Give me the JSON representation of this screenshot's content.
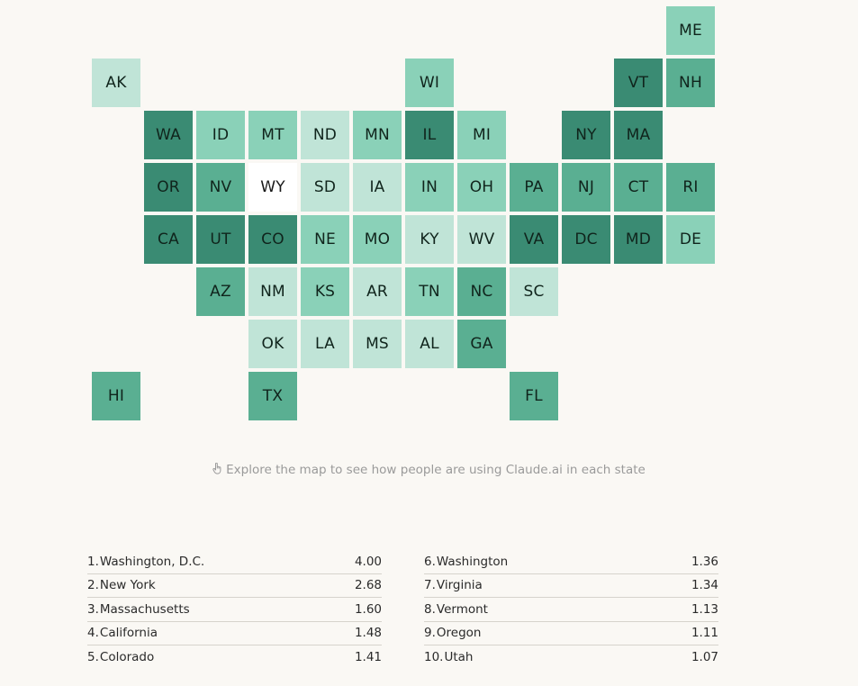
{
  "palette": {
    "level1": "#c0e4d7",
    "level2": "#8ad1b8",
    "level3": "#5aaf92",
    "level4": "#3a8b73",
    "none": "#ffffff"
  },
  "states": [
    {
      "abbr": "ME",
      "level": 2,
      "col": 11,
      "row": 0
    },
    {
      "abbr": "AK",
      "level": 1,
      "col": 0,
      "row": 1
    },
    {
      "abbr": "WI",
      "level": 2,
      "col": 6,
      "row": 1
    },
    {
      "abbr": "VT",
      "level": 4,
      "col": 10,
      "row": 1
    },
    {
      "abbr": "NH",
      "level": 3,
      "col": 11,
      "row": 1
    },
    {
      "abbr": "WA",
      "level": 4,
      "col": 1,
      "row": 2
    },
    {
      "abbr": "ID",
      "level": 2,
      "col": 2,
      "row": 2
    },
    {
      "abbr": "MT",
      "level": 2,
      "col": 3,
      "row": 2
    },
    {
      "abbr": "ND",
      "level": 1,
      "col": 4,
      "row": 2
    },
    {
      "abbr": "MN",
      "level": 2,
      "col": 5,
      "row": 2
    },
    {
      "abbr": "IL",
      "level": 4,
      "col": 6,
      "row": 2
    },
    {
      "abbr": "MI",
      "level": 2,
      "col": 7,
      "row": 2
    },
    {
      "abbr": "NY",
      "level": 4,
      "col": 9,
      "row": 2
    },
    {
      "abbr": "MA",
      "level": 4,
      "col": 10,
      "row": 2
    },
    {
      "abbr": "OR",
      "level": 4,
      "col": 1,
      "row": 3
    },
    {
      "abbr": "NV",
      "level": 3,
      "col": 2,
      "row": 3
    },
    {
      "abbr": "WY",
      "level": 0,
      "col": 3,
      "row": 3
    },
    {
      "abbr": "SD",
      "level": 1,
      "col": 4,
      "row": 3
    },
    {
      "abbr": "IA",
      "level": 1,
      "col": 5,
      "row": 3
    },
    {
      "abbr": "IN",
      "level": 2,
      "col": 6,
      "row": 3
    },
    {
      "abbr": "OH",
      "level": 2,
      "col": 7,
      "row": 3
    },
    {
      "abbr": "PA",
      "level": 3,
      "col": 8,
      "row": 3
    },
    {
      "abbr": "NJ",
      "level": 3,
      "col": 9,
      "row": 3
    },
    {
      "abbr": "CT",
      "level": 3,
      "col": 10,
      "row": 3
    },
    {
      "abbr": "RI",
      "level": 3,
      "col": 11,
      "row": 3
    },
    {
      "abbr": "CA",
      "level": 4,
      "col": 1,
      "row": 4
    },
    {
      "abbr": "UT",
      "level": 4,
      "col": 2,
      "row": 4
    },
    {
      "abbr": "CO",
      "level": 4,
      "col": 3,
      "row": 4
    },
    {
      "abbr": "NE",
      "level": 2,
      "col": 4,
      "row": 4
    },
    {
      "abbr": "MO",
      "level": 2,
      "col": 5,
      "row": 4
    },
    {
      "abbr": "KY",
      "level": 1,
      "col": 6,
      "row": 4
    },
    {
      "abbr": "WV",
      "level": 1,
      "col": 7,
      "row": 4
    },
    {
      "abbr": "VA",
      "level": 4,
      "col": 8,
      "row": 4
    },
    {
      "abbr": "DC",
      "level": 4,
      "col": 9,
      "row": 4
    },
    {
      "abbr": "MD",
      "level": 4,
      "col": 10,
      "row": 4
    },
    {
      "abbr": "DE",
      "level": 2,
      "col": 11,
      "row": 4
    },
    {
      "abbr": "AZ",
      "level": 3,
      "col": 2,
      "row": 5
    },
    {
      "abbr": "NM",
      "level": 1,
      "col": 3,
      "row": 5
    },
    {
      "abbr": "KS",
      "level": 2,
      "col": 4,
      "row": 5
    },
    {
      "abbr": "AR",
      "level": 1,
      "col": 5,
      "row": 5
    },
    {
      "abbr": "TN",
      "level": 2,
      "col": 6,
      "row": 5
    },
    {
      "abbr": "NC",
      "level": 3,
      "col": 7,
      "row": 5
    },
    {
      "abbr": "SC",
      "level": 1,
      "col": 8,
      "row": 5
    },
    {
      "abbr": "OK",
      "level": 1,
      "col": 3,
      "row": 6
    },
    {
      "abbr": "LA",
      "level": 1,
      "col": 4,
      "row": 6
    },
    {
      "abbr": "MS",
      "level": 1,
      "col": 5,
      "row": 6
    },
    {
      "abbr": "AL",
      "level": 1,
      "col": 6,
      "row": 6
    },
    {
      "abbr": "GA",
      "level": 3,
      "col": 7,
      "row": 6
    },
    {
      "abbr": "HI",
      "level": 3,
      "col": 0,
      "row": 7
    },
    {
      "abbr": "TX",
      "level": 3,
      "col": 3,
      "row": 7
    },
    {
      "abbr": "FL",
      "level": 3,
      "col": 8,
      "row": 7
    }
  ],
  "hint": {
    "icon": "hand-pointer-icon",
    "text": "Explore the map to see how people are using Claude.ai in each state"
  },
  "rankings": {
    "left": [
      {
        "rank": "1.",
        "name": "Washington, D.C.",
        "value": "4.00"
      },
      {
        "rank": "2.",
        "name": "New York",
        "value": "2.68"
      },
      {
        "rank": "3.",
        "name": "Massachusetts",
        "value": "1.60"
      },
      {
        "rank": "4.",
        "name": "California",
        "value": "1.48"
      },
      {
        "rank": "5.",
        "name": "Colorado",
        "value": "1.41"
      }
    ],
    "right": [
      {
        "rank": "6.",
        "name": "Washington",
        "value": "1.36"
      },
      {
        "rank": "7.",
        "name": "Virginia",
        "value": "1.34"
      },
      {
        "rank": "8.",
        "name": "Vermont",
        "value": "1.13"
      },
      {
        "rank": "9.",
        "name": "Oregon",
        "value": "1.11"
      },
      {
        "rank": "10.",
        "name": "Utah",
        "value": "1.07"
      }
    ]
  }
}
